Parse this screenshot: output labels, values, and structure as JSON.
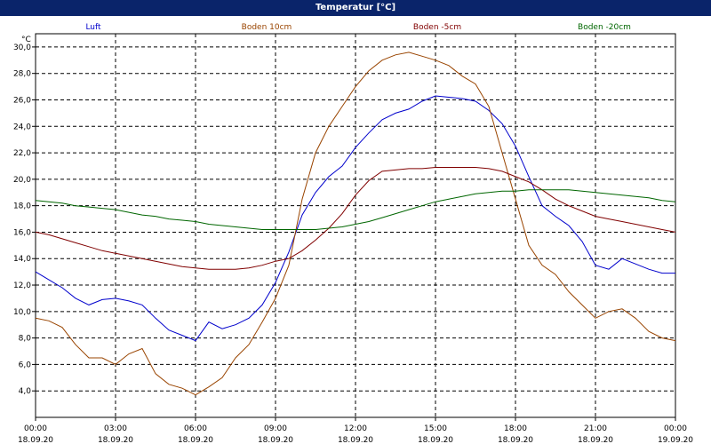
{
  "window": {
    "title": "Temperatur [°C]"
  },
  "chart_data": {
    "type": "line",
    "title": "Temperatur [°C]",
    "ylabel": "°C",
    "xlabel": "",
    "ylim": [
      2.0,
      31.0
    ],
    "xlim": [
      0,
      24
    ],
    "grid": true,
    "legend_position": "top",
    "yticks": [
      4,
      6,
      8,
      10,
      12,
      14,
      16,
      18,
      20,
      22,
      24,
      26,
      28,
      30
    ],
    "ytick_labels": [
      "4,0",
      "6,0",
      "8,0",
      "10,0",
      "12,0",
      "14,0",
      "16,0",
      "18,0",
      "20,0",
      "22,0",
      "24,0",
      "26,0",
      "28,0",
      "30,0"
    ],
    "xticks": [
      {
        "time": "00:00",
        "date": "18.09.20"
      },
      {
        "time": "03:00",
        "date": "18.09.20"
      },
      {
        "time": "06:00",
        "date": "18.09.20"
      },
      {
        "time": "09:00",
        "date": "18.09.20"
      },
      {
        "time": "12:00",
        "date": "18.09.20"
      },
      {
        "time": "15:00",
        "date": "18.09.20"
      },
      {
        "time": "18:00",
        "date": "18.09.20"
      },
      {
        "time": "21:00",
        "date": "18.09.20"
      },
      {
        "time": "00:00",
        "date": "19.09.20"
      }
    ],
    "x_unit": "hours since 18.09.20 00:00",
    "series": [
      {
        "name": "Luft",
        "color": "#0000cc",
        "x": [
          0,
          0.5,
          1,
          1.5,
          2,
          2.5,
          3,
          3.5,
          4,
          4.5,
          5,
          5.5,
          6,
          6.5,
          7,
          7.5,
          8,
          8.5,
          9,
          9.5,
          10,
          10.5,
          11,
          11.5,
          12,
          12.5,
          13,
          13.5,
          14,
          14.5,
          15,
          15.5,
          16,
          16.5,
          17,
          17.5,
          18,
          18.5,
          19,
          19.5,
          20,
          20.5,
          21,
          21.5,
          22,
          22.5,
          23,
          23.5,
          24
        ],
        "values": [
          13.0,
          12.4,
          11.8,
          11.0,
          10.5,
          10.9,
          11.0,
          10.8,
          10.5,
          9.5,
          8.6,
          8.2,
          7.8,
          9.2,
          8.7,
          9.0,
          9.5,
          10.5,
          12.2,
          14.5,
          17.3,
          19.0,
          20.2,
          21.0,
          22.4,
          23.5,
          24.5,
          25.0,
          25.3,
          25.9,
          26.3,
          26.2,
          26.1,
          25.9,
          25.2,
          24.2,
          22.5,
          20.2,
          18.0,
          17.2,
          16.5,
          15.3,
          13.5,
          13.2,
          14.0,
          13.6,
          13.2,
          12.9,
          12.9
        ]
      },
      {
        "name": "Boden 10cm",
        "color": "#994400",
        "x": [
          0,
          0.5,
          1,
          1.5,
          2,
          2.5,
          3,
          3.5,
          4,
          4.5,
          5,
          5.5,
          6,
          6.5,
          7,
          7.5,
          8,
          8.5,
          9,
          9.5,
          10,
          10.5,
          11,
          11.5,
          12,
          12.5,
          13,
          13.5,
          14,
          14.5,
          15,
          15.5,
          16,
          16.5,
          17,
          17.5,
          18,
          18.5,
          19,
          19.5,
          20,
          20.5,
          21,
          21.5,
          22,
          22.5,
          23,
          23.5,
          24
        ],
        "values": [
          9.5,
          9.3,
          8.8,
          7.5,
          6.5,
          6.5,
          6.0,
          6.8,
          7.2,
          5.3,
          4.5,
          4.2,
          3.7,
          4.3,
          5.0,
          6.5,
          7.5,
          9.2,
          11.0,
          13.5,
          18.5,
          22.0,
          24.0,
          25.5,
          27.0,
          28.2,
          29.0,
          29.4,
          29.6,
          29.3,
          29.0,
          28.6,
          27.8,
          27.2,
          25.5,
          22.0,
          18.5,
          15.0,
          13.5,
          12.8,
          11.5,
          10.5,
          9.5,
          10.0,
          10.2,
          9.5,
          8.5,
          8.0,
          7.8
        ]
      },
      {
        "name": "Boden -5cm",
        "color": "#800000",
        "x": [
          0,
          0.5,
          1,
          1.5,
          2,
          2.5,
          3,
          3.5,
          4,
          4.5,
          5,
          5.5,
          6,
          6.5,
          7,
          7.5,
          8,
          8.5,
          9,
          9.5,
          10,
          10.5,
          11,
          11.5,
          12,
          12.5,
          13,
          13.5,
          14,
          14.5,
          15,
          15.5,
          16,
          16.5,
          17,
          17.5,
          18,
          18.5,
          19,
          19.5,
          20,
          20.5,
          21,
          21.5,
          22,
          22.5,
          23,
          23.5,
          24
        ],
        "values": [
          16.0,
          15.8,
          15.5,
          15.2,
          14.9,
          14.6,
          14.4,
          14.2,
          14.0,
          13.8,
          13.6,
          13.4,
          13.3,
          13.2,
          13.2,
          13.2,
          13.3,
          13.5,
          13.8,
          14.0,
          14.6,
          15.4,
          16.3,
          17.4,
          18.8,
          19.9,
          20.6,
          20.7,
          20.8,
          20.8,
          20.9,
          20.9,
          20.9,
          20.9,
          20.8,
          20.6,
          20.2,
          19.8,
          19.2,
          18.5,
          18.0,
          17.6,
          17.2,
          17.0,
          16.8,
          16.6,
          16.4,
          16.2,
          16.0
        ]
      },
      {
        "name": "Boden -20cm",
        "color": "#006600",
        "x": [
          0,
          0.5,
          1,
          1.5,
          2,
          2.5,
          3,
          3.5,
          4,
          4.5,
          5,
          5.5,
          6,
          6.5,
          7,
          7.5,
          8,
          8.5,
          9,
          9.5,
          10,
          10.5,
          11,
          11.5,
          12,
          12.5,
          13,
          13.5,
          14,
          14.5,
          15,
          15.5,
          16,
          16.5,
          17,
          17.5,
          18,
          18.5,
          19,
          19.5,
          20,
          20.5,
          21,
          21.5,
          22,
          22.5,
          23,
          23.5,
          24
        ],
        "values": [
          18.4,
          18.3,
          18.2,
          18.0,
          17.9,
          17.8,
          17.7,
          17.5,
          17.3,
          17.2,
          17.0,
          16.9,
          16.8,
          16.6,
          16.5,
          16.4,
          16.3,
          16.2,
          16.2,
          16.2,
          16.2,
          16.2,
          16.3,
          16.4,
          16.6,
          16.8,
          17.1,
          17.4,
          17.7,
          18.0,
          18.3,
          18.5,
          18.7,
          18.9,
          19.0,
          19.1,
          19.1,
          19.2,
          19.2,
          19.2,
          19.2,
          19.1,
          19.0,
          18.9,
          18.8,
          18.7,
          18.6,
          18.4,
          18.3
        ]
      }
    ]
  }
}
